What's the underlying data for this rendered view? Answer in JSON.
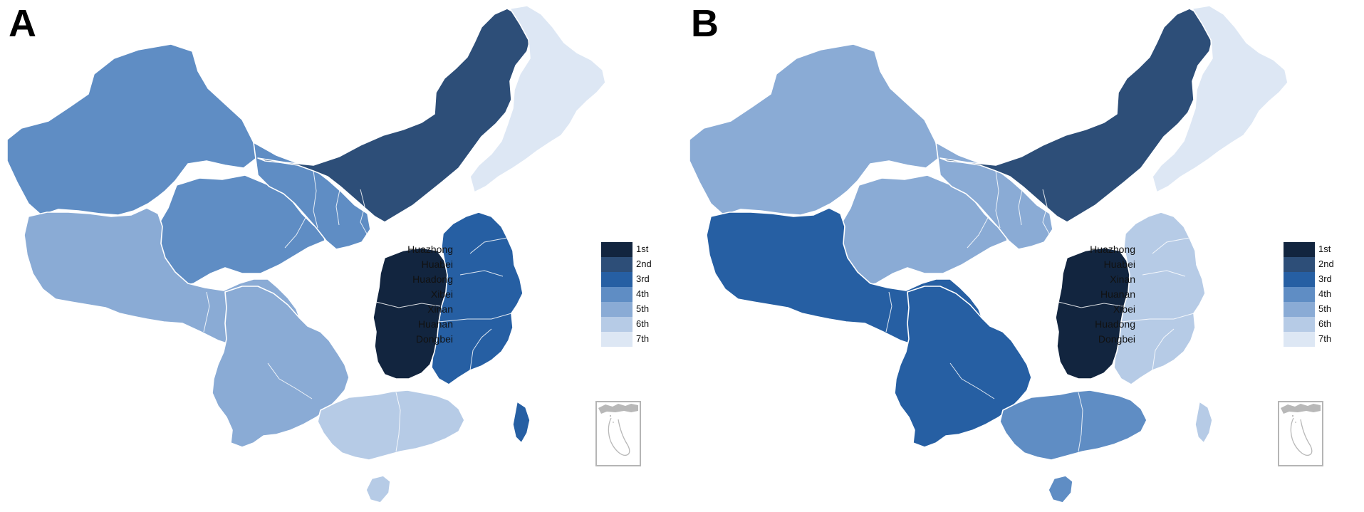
{
  "colors": {
    "rank1": "#12253f",
    "rank2": "#2d4e78",
    "rank3": "#265fa3",
    "rank4": "#5f8dc4",
    "rank5": "#8aabd5",
    "rank6": "#b6cbe6",
    "rank7": "#dde7f4",
    "border": "#ffffff",
    "inset_border": "#b5b5b5"
  },
  "panels": [
    {
      "letter": "A",
      "ranking": {
        "Huazhong": 1,
        "Huabei": 2,
        "Huadong": 3,
        "Xibei": 4,
        "Xinan": 5,
        "Huanan": 6,
        "Dongbei": 7
      },
      "legend": [
        {
          "name": "Huazhong",
          "rank": "1st"
        },
        {
          "name": "Huabei",
          "rank": "2nd"
        },
        {
          "name": "Huadong",
          "rank": "3rd"
        },
        {
          "name": "Xibei",
          "rank": "4th"
        },
        {
          "name": "Xinan",
          "rank": "5th"
        },
        {
          "name": "Huanan",
          "rank": "6th"
        },
        {
          "name": "Dongbei",
          "rank": "7th"
        }
      ]
    },
    {
      "letter": "B",
      "ranking": {
        "Huazhong": 1,
        "Huabei": 2,
        "Xinan": 3,
        "Huanan": 4,
        "Xibei": 5,
        "Huadong": 6,
        "Dongbei": 7
      },
      "legend": [
        {
          "name": "Huazhong",
          "rank": "1st"
        },
        {
          "name": "Huabei",
          "rank": "2nd"
        },
        {
          "name": "Xinan",
          "rank": "3rd"
        },
        {
          "name": "Huanan",
          "rank": "4th"
        },
        {
          "name": "Xibei",
          "rank": "5th"
        },
        {
          "name": "Huadong",
          "rank": "6th"
        },
        {
          "name": "Dongbei",
          "rank": "7th"
        }
      ]
    }
  ]
}
